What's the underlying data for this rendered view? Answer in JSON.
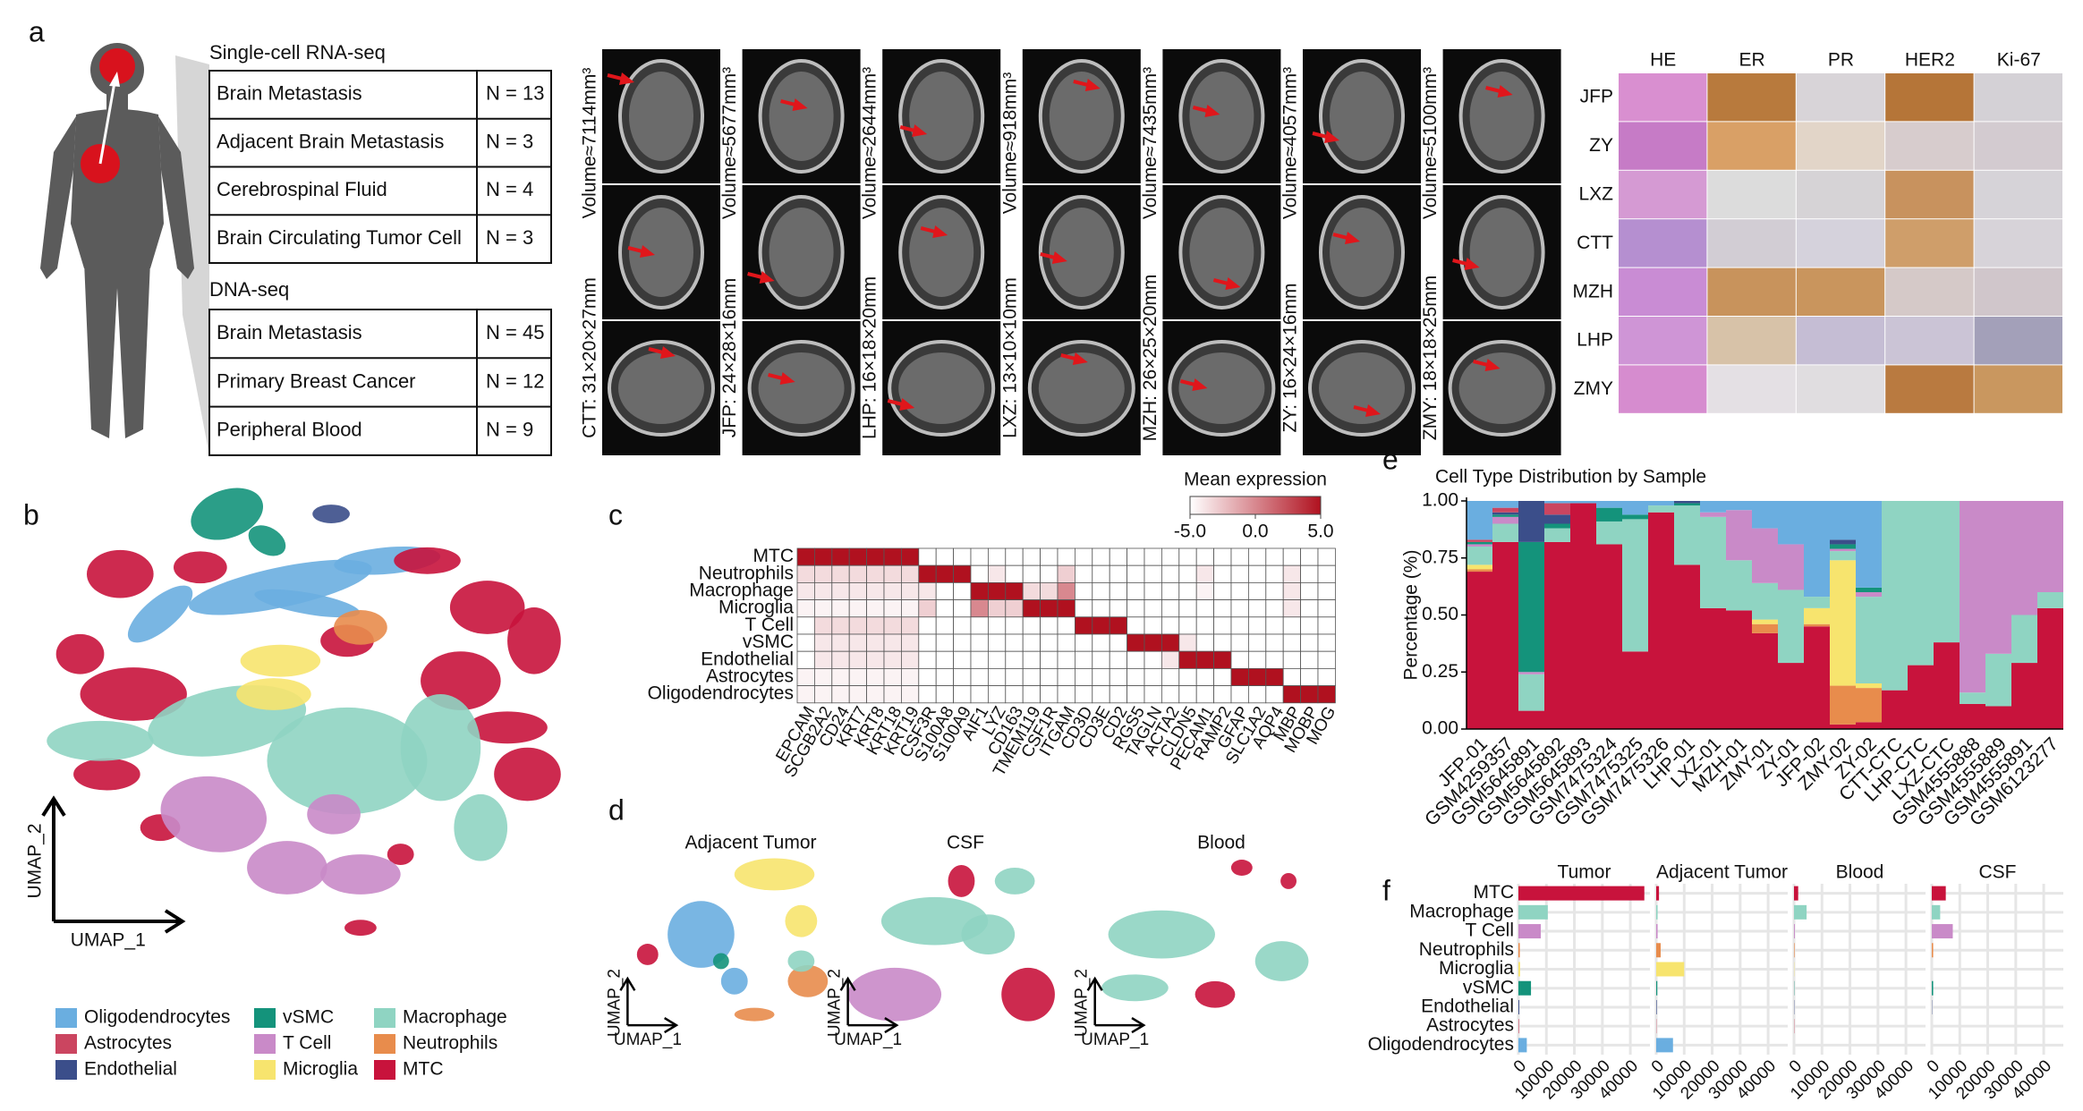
{
  "panel_labels": [
    "a",
    "b",
    "c",
    "d",
    "e",
    "f"
  ],
  "panel_a": {
    "scrnaseq": {
      "title": "Single-cell RNA-seq",
      "rows": [
        [
          "Brain Metastasis",
          "N = 13"
        ],
        [
          "Adjacent Brain Metastasis",
          "N = 3"
        ],
        [
          "Cerebrospinal Fluid",
          "N = 4"
        ],
        [
          "Brain Circulating Tumor Cell",
          "N = 3"
        ]
      ]
    },
    "dnaseq": {
      "title": "DNA-seq",
      "rows": [
        [
          "Brain Metastasis",
          "N = 45"
        ],
        [
          "Primary Breast Cancer",
          "N = 12"
        ],
        [
          "Peripheral Blood",
          "N = 9"
        ]
      ]
    },
    "mri": [
      {
        "size": "CTT: 31×20×27mm",
        "volume": "Volume≈7114mm³"
      },
      {
        "size": "JFP: 24×28×16mm",
        "volume": "Volume≈5677mm³"
      },
      {
        "size": "LHP: 16×18×20mm",
        "volume": "Volume≈2644mm³"
      },
      {
        "size": "LXZ: 13×10×10mm",
        "volume": "Volume≈918mm³"
      },
      {
        "size": "MZH: 26×25×20mm",
        "volume": "Volume≈7435mm³"
      },
      {
        "size": "ZY: 16×24×16mm",
        "volume": "Volume≈4057mm³"
      },
      {
        "size": "ZMY: 18×18×25mm",
        "volume": "Volume≈5100mm³"
      }
    ],
    "ihc": {
      "stains": [
        "HE",
        "ER",
        "PR",
        "HER2",
        "Ki-67"
      ],
      "patients": [
        "JFP",
        "ZY",
        "LXZ",
        "CTT",
        "MZH",
        "LHP",
        "ZMY"
      ]
    }
  },
  "panel_b": {
    "x_label": "UMAP_1",
    "y_label": "UMAP_2"
  },
  "panel_d": {
    "plots": [
      {
        "title": "Adjacent Tumor",
        "x_label": "UMAP_1",
        "y_label": "UMAP_2"
      },
      {
        "title": "CSF",
        "x_label": "UMAP_1",
        "y_label": "UMAP_2"
      },
      {
        "title": "Blood",
        "x_label": "UMAP_1",
        "y_label": "UMAP_2"
      }
    ]
  },
  "chart_data": [
    {
      "type": "heatmap",
      "rows": [
        "MTC",
        "Neutrophils",
        "Macrophage",
        "Microglia",
        "T Cell",
        "vSMC",
        "Endothelial",
        "Astrocytes",
        "Oligodendrocytes"
      ],
      "columns": [
        "EPCAM",
        "SCGB2A2",
        "CD24",
        "KRT7",
        "KRT8",
        "KRT18",
        "KRT19",
        "CSF3R",
        "S100A8",
        "S100A9",
        "AIF1",
        "LYZ",
        "CD163",
        "TMEM119",
        "CSF1R",
        "ITGAM",
        "CD3D",
        "CD3E",
        "CD2",
        "RGS5",
        "TAGLN",
        "ACTA2",
        "CLDN5",
        "PECAM1",
        "RAMP2",
        "GFAP",
        "SLC1A2",
        "AQP4",
        "MBP",
        "MOBP",
        "MOG"
      ],
      "values": [
        [
          5,
          5,
          5,
          5,
          5,
          5,
          5,
          -5,
          -5,
          -5,
          -5,
          -5,
          -5,
          -5,
          -5,
          -5,
          -5,
          -5,
          -5,
          -5,
          -5,
          -5,
          -5,
          -5,
          -5,
          -5,
          -5,
          -5,
          -5,
          -5,
          -5
        ],
        [
          -3.5,
          -3.5,
          -3.5,
          -3.5,
          -3.5,
          -3.5,
          -3.5,
          5,
          5,
          5,
          -5,
          -4,
          -5,
          -5,
          -5,
          -3,
          -5,
          -5,
          -5,
          -5,
          -5,
          -5,
          -5,
          -4,
          -5,
          -5,
          -5,
          -5,
          -4,
          -5,
          -5
        ],
        [
          -4,
          -4,
          -4,
          -4,
          -4,
          -4,
          -4,
          -4,
          -5,
          -5,
          5,
          5,
          5,
          -3.5,
          -3.5,
          0,
          -5,
          -5,
          -5,
          -5,
          -5,
          -5,
          -5,
          -4.5,
          -5,
          -5,
          -5,
          -5,
          -4,
          -5,
          -5
        ],
        [
          -4.5,
          -4.5,
          -4.5,
          -4.5,
          -4.5,
          -4.5,
          -4.5,
          -3,
          -5,
          -5,
          0,
          -3,
          -3,
          5,
          5,
          5,
          -5,
          -5,
          -5,
          -5,
          -5,
          -5,
          -5,
          -5,
          -5,
          -5,
          -5,
          -5,
          -4,
          -5,
          -5
        ],
        [
          -5,
          -3.5,
          -3.5,
          -3.5,
          -3.5,
          -3.5,
          -3.5,
          -5,
          -5,
          -5,
          -5,
          -5,
          -5,
          -5,
          -5,
          -5,
          5,
          5,
          5,
          -5,
          -5,
          -5,
          -5,
          -5,
          -5,
          -5,
          -5,
          -5,
          -5,
          -5,
          -5
        ],
        [
          -5,
          -4,
          -4,
          -4,
          -4,
          -4,
          -4,
          -5,
          -5,
          -5,
          -5,
          -5,
          -5,
          -5,
          -5,
          -5,
          -5,
          -5,
          -5,
          5,
          5,
          5,
          -4,
          -5,
          -5,
          -5,
          -5,
          -5,
          -5,
          -5,
          -5
        ],
        [
          -5,
          -4,
          -4,
          -4,
          -4,
          -4,
          -4,
          -5,
          -5,
          -5,
          -5,
          -5,
          -5,
          -5,
          -5,
          -5,
          -5,
          -5,
          -5,
          -5,
          -5,
          -4,
          5,
          5,
          5,
          -5,
          -5,
          -5,
          -5,
          -5,
          -5
        ],
        [
          -4.5,
          -4.5,
          -4.5,
          -4.5,
          -4.5,
          -4.5,
          -4.5,
          -5,
          -5,
          -5,
          -5,
          -5,
          -5,
          -5,
          -5,
          -5,
          -5,
          -5,
          -5,
          -5,
          -5,
          -5,
          -5,
          -5,
          -5,
          5,
          5,
          5,
          -5,
          -5,
          -5
        ],
        [
          -4.5,
          -4.5,
          -4.5,
          -4.5,
          -4.5,
          -4.5,
          -4.5,
          -5,
          -5,
          -5,
          -5,
          -5,
          -5,
          -5,
          -5,
          -5,
          -5,
          -5,
          -5,
          -5,
          -5,
          -5,
          -5,
          -5,
          -5,
          -5,
          -5,
          -5,
          5,
          5,
          5
        ]
      ],
      "colorbar_title": "Mean expression",
      "zlim": [
        -5,
        5
      ],
      "zticks": [
        {
          "value": -5,
          "label": "-5.0"
        },
        {
          "value": 0,
          "label": "0.0"
        },
        {
          "value": 5,
          "label": "5.0"
        }
      ],
      "colors": [
        "#ffffff",
        "#b0111f"
      ]
    },
    {
      "type": "stacked_bar",
      "title": "Cell Type Distribution by Sample",
      "y_label": "Percentage (%)",
      "categories": [
        "JFP-01",
        "GSM4259357",
        "GSM5645891",
        "GSM5645892",
        "GSM5645893",
        "GSM7475324",
        "GSM7475325",
        "GSM7475326",
        "LHP-01",
        "LXZ-01",
        "MZH-01",
        "ZMY-01",
        "ZY-01",
        "JFP-02",
        "ZMY-02",
        "ZY-02",
        "CTT-CTC",
        "LHP-CTC",
        "LXZ-CTC",
        "GSM4555888",
        "GSM4555889",
        "GSM4555891",
        "GSM6123277"
      ],
      "series": [
        {
          "name": "MTC",
          "color": "#c8133c",
          "values": [
            0.69,
            0.82,
            0.08,
            0.82,
            0.99,
            0.81,
            0.34,
            0.95,
            0.72,
            0.53,
            0.52,
            0.42,
            0.29,
            0.45,
            0.02,
            0.03,
            0.17,
            0.28,
            0.38,
            0.11,
            0.1,
            0.29,
            0.53
          ]
        },
        {
          "name": "Neutrophils",
          "color": "#e88c4c",
          "values": [
            0.01,
            0,
            0,
            0,
            0,
            0,
            0,
            0,
            0,
            0,
            0,
            0.04,
            0,
            0.01,
            0.17,
            0.15,
            0,
            0,
            0,
            0,
            0,
            0,
            0
          ]
        },
        {
          "name": "Microglia",
          "color": "#f7e46e",
          "values": [
            0.02,
            0,
            0,
            0,
            0,
            0,
            0,
            0,
            0,
            0,
            0,
            0.02,
            0,
            0.07,
            0.55,
            0.02,
            0,
            0,
            0,
            0,
            0,
            0,
            0
          ]
        },
        {
          "name": "Macrophage",
          "color": "#8fd4c2",
          "values": [
            0.08,
            0.08,
            0.16,
            0.06,
            0,
            0.1,
            0.58,
            0.03,
            0.26,
            0.4,
            0.22,
            0.16,
            0.32,
            0.05,
            0.04,
            0.38,
            0.83,
            0.72,
            0.62,
            0.05,
            0.23,
            0.21,
            0.07
          ]
        },
        {
          "name": "T Cell",
          "color": "#c98ac8",
          "values": [
            0.01,
            0.03,
            0.01,
            0,
            0,
            0,
            0,
            0,
            0,
            0.02,
            0.22,
            0.24,
            0.2,
            0,
            0.01,
            0.02,
            0,
            0,
            0,
            0.84,
            0.67,
            0.5,
            0.4
          ]
        },
        {
          "name": "vSMC",
          "color": "#14937b",
          "values": [
            0.01,
            0.01,
            0.57,
            0.02,
            0,
            0.06,
            0.02,
            0,
            0.01,
            0,
            0,
            0,
            0,
            0,
            0.02,
            0.02,
            0,
            0,
            0,
            0,
            0,
            0,
            0
          ]
        },
        {
          "name": "Endothelial",
          "color": "#3b4e8a",
          "values": [
            0,
            0.01,
            0.18,
            0.04,
            0,
            0,
            0,
            0,
            0.01,
            0,
            0,
            0,
            0,
            0,
            0.02,
            0,
            0,
            0,
            0,
            0,
            0,
            0,
            0
          ]
        },
        {
          "name": "Astrocytes",
          "color": "#cb4560",
          "values": [
            0.01,
            0.02,
            0,
            0.05,
            0,
            0,
            0,
            0,
            0,
            0,
            0,
            0,
            0,
            0,
            0,
            0,
            0,
            0,
            0,
            0,
            0,
            0,
            0
          ]
        },
        {
          "name": "Oligodendrocytes",
          "color": "#6aaee0",
          "values": [
            0.17,
            0.03,
            0,
            0.01,
            0.01,
            0.03,
            0.06,
            0.02,
            0,
            0.05,
            0.04,
            0.12,
            0.19,
            0.42,
            0.17,
            0.38,
            0,
            0,
            0,
            0,
            0,
            0,
            0
          ]
        }
      ],
      "ylim": [
        0,
        1
      ],
      "yticks": [
        {
          "value": 0,
          "label": "0.00"
        },
        0.25,
        {
          "value": 0.5,
          "label": "0.50"
        },
        0.75,
        {
          "value": 1,
          "label": "1.00"
        }
      ]
    },
    {
      "type": "faceted_hbar",
      "categories": [
        "MTC",
        "Macrophage",
        "T Cell",
        "Neutrophils",
        "Microglia",
        "vSMC",
        "Endothelial",
        "Astrocytes",
        "Oligodendrocytes"
      ],
      "colors": [
        "#c8133c",
        "#8fd4c2",
        "#c98ac8",
        "#e88c4c",
        "#f7e46e",
        "#14937b",
        "#3b4e8a",
        "#cb4560",
        "#6aaee0"
      ],
      "series": [
        {
          "name": "Tumor",
          "values": [
            45000,
            10500,
            8000,
            500,
            600,
            4500,
            300,
            200,
            3000
          ]
        },
        {
          "name": "Adjacent Tumor",
          "values": [
            1000,
            500,
            500,
            1600,
            10000,
            400,
            200,
            100,
            6000
          ]
        },
        {
          "name": "Blood",
          "values": [
            1500,
            4500,
            300,
            200,
            100,
            100,
            100,
            100,
            0
          ]
        },
        {
          "name": "CSF",
          "values": [
            5000,
            3000,
            7500,
            500,
            0,
            500,
            100,
            0,
            0
          ]
        }
      ],
      "xlim": [
        0,
        47000
      ],
      "xticks": [
        0,
        10000,
        20000,
        30000,
        40000
      ],
      "grid": true
    }
  ]
}
